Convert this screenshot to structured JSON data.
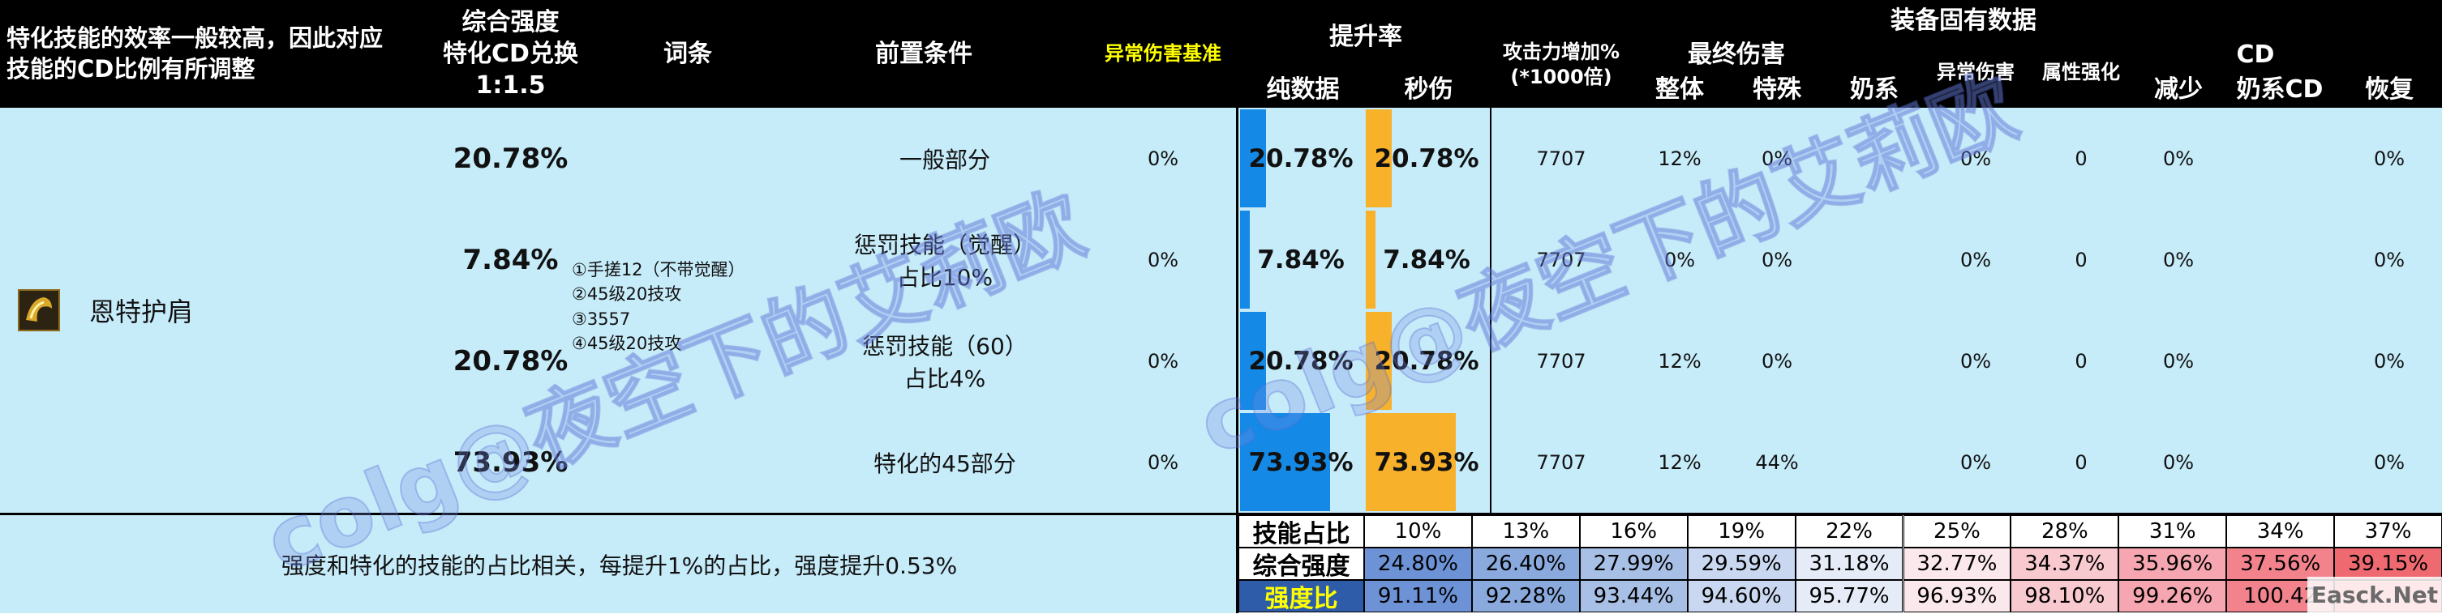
{
  "header": {
    "intro": "特化技能的效率一般较高，因此对应\n技能的CD比例有所调整",
    "strength": "综合强度\n特化CD兑换\n1:1.5",
    "affix": "词条",
    "prereq": "前置条件",
    "abnormal_base": "异常伤害基准",
    "boost": "提升率",
    "pure": "纯数据",
    "dps": "秒伤",
    "atk": "攻击力增加%\n(*1000倍)",
    "equip_fixed": "装备固有数据",
    "final_dmg": "最终伤害",
    "overall": "整体",
    "special": "特殊",
    "nai": "奶系",
    "abnormal_dmg": "异常伤害",
    "elem": "属性强化",
    "cd": "CD",
    "reduce": "减少",
    "nai_cd": "奶系CD",
    "recover": "恢复"
  },
  "skill": {
    "name": "恩特护肩",
    "icon": "shoulder-armor-icon"
  },
  "affixes": "①手搓12（不带觉醒）\n②45级20技攻\n③3557\n④45级20技攻",
  "rows": [
    {
      "strength": "20.78%",
      "prereq": "一般部分",
      "abnormal": "0%",
      "pure": "20.78%",
      "pure_frac": 0.21,
      "dps": "20.78%",
      "dps_frac": 0.21,
      "atk": "7707",
      "overall": "12%",
      "special": "0%",
      "nai": "",
      "abn": "0%",
      "elem": "0",
      "reduce": "0%",
      "naicd": "",
      "recover": "0%"
    },
    {
      "strength": "7.84%",
      "prereq": "惩罚技能（觉醒）\n占比10%",
      "abnormal": "0%",
      "pure": "7.84%",
      "pure_frac": 0.08,
      "dps": "7.84%",
      "dps_frac": 0.08,
      "atk": "7707",
      "overall": "0%",
      "special": "0%",
      "nai": "",
      "abn": "0%",
      "elem": "0",
      "reduce": "0%",
      "naicd": "",
      "recover": "0%"
    },
    {
      "strength": "20.78%",
      "prereq": "惩罚技能（60）\n占比4%",
      "abnormal": "0%",
      "pure": "20.78%",
      "pure_frac": 0.21,
      "dps": "20.78%",
      "dps_frac": 0.21,
      "atk": "7707",
      "overall": "12%",
      "special": "0%",
      "nai": "",
      "abn": "0%",
      "elem": "0",
      "reduce": "0%",
      "naicd": "",
      "recover": "0%"
    },
    {
      "strength": "73.93%",
      "prereq": "特化的45部分",
      "abnormal": "0%",
      "pure": "73.93%",
      "pure_frac": 0.74,
      "dps": "73.93%",
      "dps_frac": 0.74,
      "atk": "7707",
      "overall": "12%",
      "special": "44%",
      "nai": "",
      "abn": "0%",
      "elem": "0",
      "reduce": "0%",
      "naicd": "",
      "recover": "0%"
    }
  ],
  "note": "强度和特化的技能的占比相关，每提升1%的占比，强度提升0.53%",
  "bottom_table": {
    "labels": [
      "技能占比",
      "综合强度",
      "强度比"
    ],
    "ratios": [
      "10%",
      "13%",
      "16%",
      "19%",
      "22%",
      "25%",
      "28%",
      "31%",
      "34%",
      "37%"
    ],
    "strength": [
      "24.80%",
      "26.40%",
      "27.99%",
      "29.59%",
      "31.18%",
      "32.77%",
      "34.37%",
      "35.96%",
      "37.56%",
      "39.15%"
    ],
    "strength_colors": [
      "#6d93d6",
      "#8aaade",
      "#a9c0e6",
      "#c9d8f0",
      "#e5ecf8",
      "#fbe8ec",
      "#f9c9d0",
      "#f6a6b0",
      "#f2828c",
      "#ee6a70"
    ],
    "ratio_vals": [
      "91.11%",
      "92.28%",
      "93.44%",
      "94.60%",
      "95.77%",
      "96.93%",
      "98.10%",
      "99.26%",
      "100.42",
      ""
    ],
    "ratio_colors": [
      "#6d93d6",
      "#8aaade",
      "#a9c0e6",
      "#c9d8f0",
      "#e5ecf8",
      "#fbe8ec",
      "#f9c9d0",
      "#f6a6b0",
      "#f2828c",
      "#ee6a70"
    ]
  },
  "watermarks": [
    "colg@夜空下的艾莉欧",
    "colg@夜空下的艾莉欧"
  ],
  "corner_badge": "Easck.Net"
}
